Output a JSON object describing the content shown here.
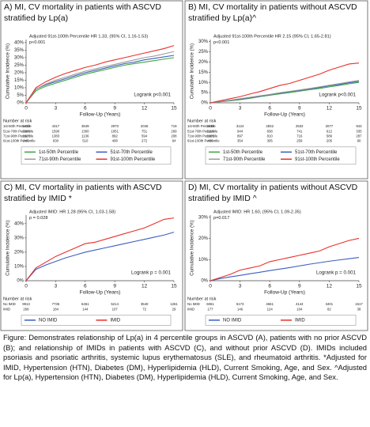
{
  "chart_data": [
    {
      "type": "line",
      "title": "A) MI, CV mortality in patients with ASCVD stratified by Lp(a)",
      "annotation": [
        "Adjusted 91st-100th Percentile  HR 1.33, (95% CI, 1.16-1.53)",
        "p<0.001"
      ],
      "ylabel": "Cumulative Incidence (%)",
      "xlabel": "Follow-Up (Years)",
      "logrank": "Logrank p<0.001",
      "xlim": [
        0,
        15
      ],
      "xticks": [
        0,
        3,
        6,
        9,
        12,
        15
      ],
      "ylim": [
        0,
        42
      ],
      "yticks": [
        {
          "value": 0,
          "label": "0%"
        },
        {
          "value": 5,
          "label": "5%"
        },
        {
          "value": 10,
          "label": "10%"
        },
        {
          "value": 15,
          "label": "15%"
        },
        {
          "value": 20,
          "label": "20%"
        },
        {
          "value": 25,
          "label": "25%"
        },
        {
          "value": 30,
          "label": "30%"
        },
        {
          "value": 35,
          "label": "35%"
        },
        {
          "value": 40,
          "label": "40%"
        }
      ],
      "x": [
        0,
        1,
        2,
        3,
        4,
        5,
        6,
        7,
        8,
        9,
        10,
        11,
        12,
        13,
        14,
        15
      ],
      "series": [
        {
          "name": "1st-50th Percentile",
          "color": "#3fa63f",
          "values": [
            0,
            8,
            11,
            13,
            15,
            17,
            19,
            20.5,
            22,
            23.5,
            25,
            26,
            27,
            28,
            29,
            30
          ]
        },
        {
          "name": "51st-70th Percentile",
          "color": "#3b5fc0",
          "values": [
            0,
            9,
            12,
            14,
            16,
            18,
            20,
            21.5,
            23,
            24.5,
            26,
            27,
            28.5,
            29.5,
            30.5,
            31.5
          ]
        },
        {
          "name": "71st-90th Percentile",
          "color": "#9a9a9a",
          "values": [
            0,
            9,
            12.5,
            15,
            17,
            19,
            21,
            22.5,
            24,
            25.5,
            27,
            28.5,
            30,
            31,
            32.5,
            34
          ]
        },
        {
          "name": "91st-100th Percentile",
          "color": "#e8302a",
          "values": [
            0,
            10,
            14,
            17,
            19.5,
            21.5,
            23.5,
            25,
            27,
            28.5,
            30,
            31.5,
            33,
            34.5,
            36,
            38
          ]
        }
      ],
      "risk_title": "Number at risk",
      "risk": [
        {
          "label": "1st-50th Percentile",
          "values": [
            5423,
            4317,
            3649,
            2970,
            2045,
            719
          ]
        },
        {
          "label": "51st-70th Percentile",
          "values": [
            2086,
            1590,
            1300,
            1051,
            751,
            269
          ]
        },
        {
          "label": "71st-90th Percentile",
          "values": [
            1827,
            1383,
            1136,
            892,
            594,
            208
          ]
        },
        {
          "label": "91st-100th Percentile",
          "values": [
            845,
            630,
            510,
            408,
            272,
            94
          ]
        }
      ]
    },
    {
      "type": "line",
      "title": "B) MI, CV mortality in patients without ASCVD stratified by Lp(a)^",
      "annotation": [
        "Adjusted 91st-100th Percentile  HR 2.15 (95% CI, 1.65-2.81)",
        "p<0.001"
      ],
      "ylabel": "Cumulative Incidence (%)",
      "xlabel": "Follow-Up (Years)",
      "logrank": "Logrank p<0.001",
      "xlim": [
        0,
        15
      ],
      "xticks": [
        0,
        3,
        6,
        9,
        12,
        15
      ],
      "ylim": [
        0,
        31
      ],
      "yticks": [
        {
          "value": 0,
          "label": "0%"
        },
        {
          "value": 5,
          "label": "5%"
        },
        {
          "value": 10,
          "label": "10%"
        },
        {
          "value": 15,
          "label": "15%"
        },
        {
          "value": 20,
          "label": "20%"
        },
        {
          "value": 25,
          "label": "25%"
        },
        {
          "value": 30,
          "label": "30%"
        }
      ],
      "x": [
        0,
        1,
        2,
        3,
        4,
        5,
        6,
        7,
        8,
        9,
        10,
        11,
        12,
        13,
        14,
        15
      ],
      "series": [
        {
          "name": "1st-50th Percentile",
          "color": "#3fa63f",
          "values": [
            0,
            0.5,
            1,
            1.5,
            2.2,
            3,
            3.7,
            4.4,
            5,
            5.7,
            6.4,
            7,
            7.8,
            8.5,
            9.3,
            10
          ]
        },
        {
          "name": "51st-70th Percentile",
          "color": "#3b5fc0",
          "values": [
            0,
            0.6,
            1.2,
            1.8,
            2.5,
            3.2,
            4,
            4.7,
            5.4,
            6.1,
            6.8,
            7.5,
            8.3,
            9,
            9.8,
            10.5
          ]
        },
        {
          "name": "71st-90th Percentile",
          "color": "#9a9a9a",
          "values": [
            0,
            0.6,
            1.3,
            2,
            2.7,
            3.4,
            4.1,
            4.9,
            5.6,
            6.3,
            7,
            7.8,
            8.6,
            9.4,
            10.2,
            11
          ]
        },
        {
          "name": "91st-100th Percentile",
          "color": "#e8302a",
          "values": [
            0,
            1,
            2,
            3,
            4.3,
            5.5,
            7,
            8.5,
            9.5,
            11,
            12.5,
            14,
            16,
            17.5,
            19,
            19.5
          ]
        }
      ],
      "risk_title": "Number at risk",
      "risk": [
        {
          "label": "1st-50th Percentile",
          "values": [
            3618,
            3124,
            2832,
            2532,
            2077,
            943
          ]
        },
        {
          "label": "51st-70th Percentile",
          "values": [
            1119,
            944,
            838,
            741,
            612,
            335
          ]
        },
        {
          "label": "71st-90th Percentile",
          "values": [
            1065,
            897,
            810,
            716,
            589,
            287
          ]
        },
        {
          "label": "91st-100th Percentile",
          "values": [
            436,
            354,
            305,
            259,
            205,
            90
          ]
        }
      ]
    },
    {
      "type": "line",
      "title": "C) MI, CV mortality in patients with ASCVD stratified by IMID *",
      "annotation": [
        "Adjusted IMID:  HR 1.28 (95% CI, 1.03-1.58)",
        "p = 0.028"
      ],
      "ylabel": "Cumulative Incidence (%)",
      "xlabel": "Follow-Up (Years)",
      "logrank": "Logrank p = 0.001",
      "xlim": [
        0,
        15
      ],
      "xticks": [
        0,
        3,
        6,
        9,
        12,
        15
      ],
      "ylim": [
        0,
        46
      ],
      "yticks": [
        {
          "value": 0,
          "label": "0%"
        },
        {
          "value": 10,
          "label": "10%"
        },
        {
          "value": 20,
          "label": "20%"
        },
        {
          "value": 30,
          "label": "30%"
        },
        {
          "value": 40,
          "label": "40%"
        }
      ],
      "x": [
        0,
        1,
        2,
        3,
        4,
        5,
        6,
        7,
        8,
        9,
        10,
        11,
        12,
        13,
        14,
        15
      ],
      "series": [
        {
          "name": "NO IMID",
          "color": "#3b5fc0",
          "values": [
            0,
            8,
            11,
            13.5,
            16,
            18,
            20,
            21.5,
            23,
            24.5,
            26,
            27.5,
            29,
            30.5,
            32,
            34
          ]
        },
        {
          "name": "IMID",
          "color": "#e8302a",
          "values": [
            0,
            9,
            13,
            17,
            20,
            23,
            26,
            27,
            29,
            31,
            33,
            35,
            37,
            40,
            43,
            44
          ]
        }
      ],
      "risk_title": "Number at risk",
      "risk": [
        {
          "label": "No IMID",
          "values": [
            9913,
            7736,
            6451,
            5214,
            3540,
            1261
          ]
        },
        {
          "label": "IMID",
          "values": [
            268,
            184,
            144,
            107,
            72,
            29
          ]
        }
      ]
    },
    {
      "type": "line",
      "title": "D) MI, CV mortality in patients without  ASCVD stratified by IMID ^",
      "annotation": [
        "Adjusted IMID:  HR 1.60, (95% CI, 1.09-2.35)",
        "p=0.017"
      ],
      "ylabel": "Cumulative Incidence (%)",
      "xlabel": "Follow-Up (Years)",
      "logrank": "Logrank p = 0.001",
      "xlim": [
        0,
        15
      ],
      "xticks": [
        0,
        3,
        6,
        9,
        12,
        15
      ],
      "ylim": [
        0,
        31
      ],
      "yticks": [
        {
          "value": 0,
          "label": "0%"
        },
        {
          "value": 10,
          "label": "10%"
        },
        {
          "value": 20,
          "label": "20%"
        },
        {
          "value": 30,
          "label": "30%"
        }
      ],
      "x": [
        0,
        1,
        2,
        3,
        4,
        5,
        6,
        7,
        8,
        9,
        10,
        11,
        12,
        13,
        14,
        15
      ],
      "series": [
        {
          "name": "NO IMID",
          "color": "#3b5fc0",
          "values": [
            0,
            1,
            1.8,
            2.5,
            3.3,
            4,
            4.8,
            5.5,
            6.2,
            7,
            7.8,
            8.5,
            9.2,
            9.8,
            10.4,
            11
          ]
        },
        {
          "name": "IMID",
          "color": "#e8302a",
          "values": [
            0,
            1.5,
            3,
            5,
            6,
            7,
            9,
            10,
            11,
            12,
            13,
            14,
            16,
            17.5,
            19,
            20
          ]
        }
      ],
      "risk_title": "Number at risk",
      "risk": [
        {
          "label": "No IMID",
          "values": [
            6061,
            5173,
            4661,
            4144,
            3401,
            1617
          ]
        },
        {
          "label": "IMID",
          "values": [
            177,
            146,
            124,
            104,
            82,
            38
          ]
        }
      ]
    }
  ],
  "caption": "Figure: Demonstrates relationship of Lp(a) in 4 percentile groups in ASCVD (A), patients with no prior ASCVD (B); and relationship of IMIDs in patients with ASCVD (C), and without prior ASCVD (D). IMIDs included psoriasis and psoriatic arthritis, systemic lupus erythematosus (SLE), and rheumatoid arthritis. *Adjusted for IMID, Hypertension (HTN), Diabetes (DM), Hyperlipidemia (HLD), Current Smoking, Age, and Sex. ^Adjusted for Lp(a), Hypertension (HTN), Diabetes (DM), Hyperlipidemia (HLD), Current Smoking, Age, and Sex."
}
